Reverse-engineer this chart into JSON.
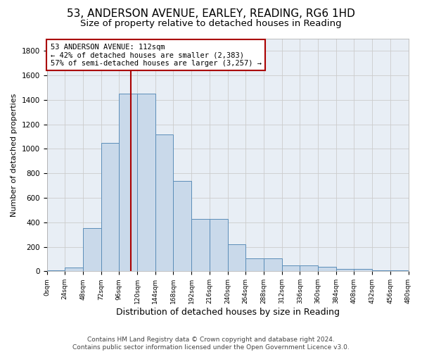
{
  "title": "53, ANDERSON AVENUE, EARLEY, READING, RG6 1HD",
  "subtitle": "Size of property relative to detached houses in Reading",
  "xlabel": "Distribution of detached houses by size in Reading",
  "ylabel": "Number of detached properties",
  "footnote1": "Contains HM Land Registry data © Crown copyright and database right 2024.",
  "footnote2": "Contains public sector information licensed under the Open Government Licence v3.0.",
  "annotation_line1": "53 ANDERSON AVENUE: 112sqm",
  "annotation_line2": "← 42% of detached houses are smaller (2,383)",
  "annotation_line3": "57% of semi-detached houses are larger (3,257) →",
  "bar_edges": [
    0,
    24,
    48,
    72,
    96,
    120,
    144,
    168,
    192,
    216,
    240,
    264,
    288,
    312,
    336,
    360,
    384,
    408,
    432,
    456,
    480
  ],
  "bar_heights": [
    5,
    30,
    350,
    1050,
    1450,
    1450,
    1120,
    740,
    430,
    430,
    220,
    105,
    105,
    50,
    50,
    35,
    20,
    20,
    10,
    5
  ],
  "bar_facecolor": "#c9d9ea",
  "bar_edgecolor": "#5b8db8",
  "vline_color": "#aa0000",
  "vline_x": 112,
  "ylim": [
    0,
    1900
  ],
  "yticks": [
    0,
    200,
    400,
    600,
    800,
    1000,
    1200,
    1400,
    1600,
    1800
  ],
  "xlim": [
    0,
    480
  ],
  "grid_color": "#cccccc",
  "bg_color": "#e8eef5",
  "title_fontsize": 11,
  "subtitle_fontsize": 9.5,
  "annotation_fontsize": 7.5,
  "xlabel_fontsize": 9,
  "ylabel_fontsize": 8,
  "footnote_fontsize": 6.5
}
